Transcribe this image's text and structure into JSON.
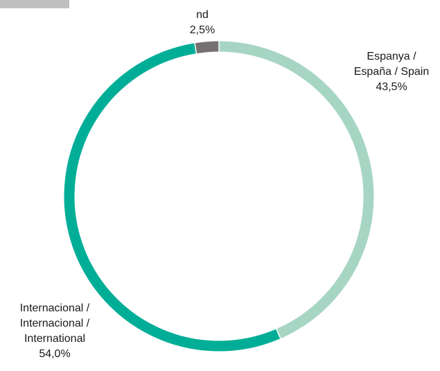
{
  "chart_data": {
    "type": "pie",
    "variant": "donut",
    "title": "",
    "legend": "none",
    "slices": [
      {
        "label_lines": [
          "Espanya /",
          "España / Spain"
        ],
        "value": 43.5,
        "value_text": "43,5%",
        "color": "#a7d5c4"
      },
      {
        "label_lines": [
          "Internacional /",
          "Internacional /",
          "International"
        ],
        "value": 54.0,
        "value_text": "54,0%",
        "color": "#00ae98"
      },
      {
        "label_lines": [
          "nd"
        ],
        "value": 2.5,
        "value_text": "2,5%",
        "color": "#767171"
      }
    ]
  }
}
